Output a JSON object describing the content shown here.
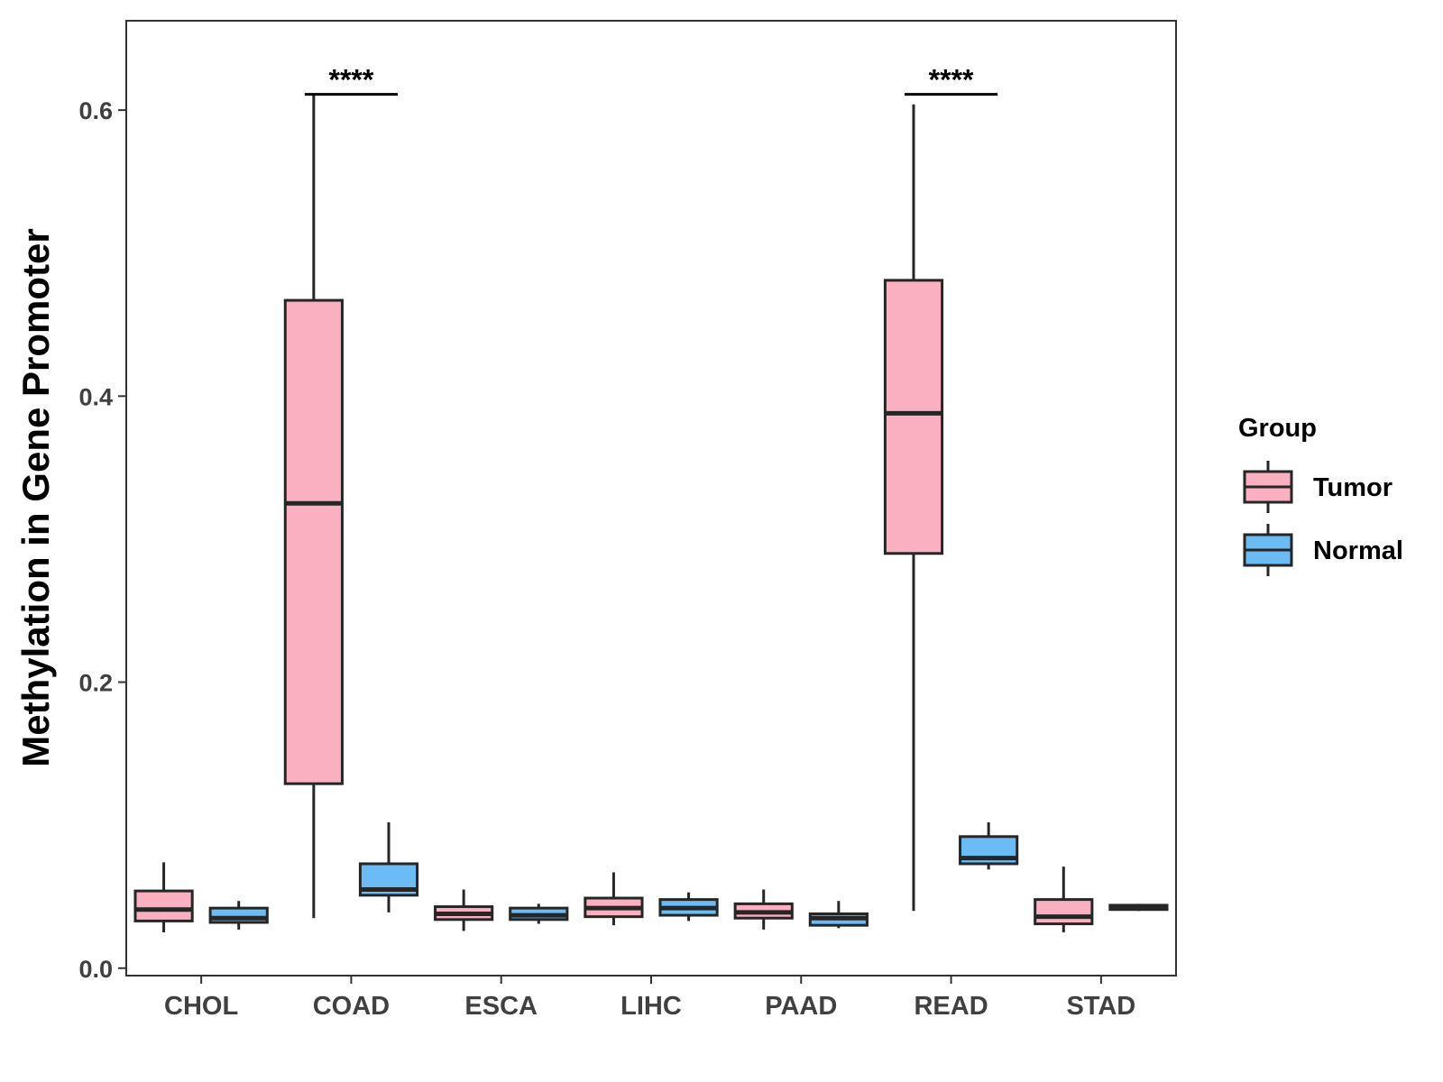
{
  "chart_data": {
    "type": "box",
    "title": "",
    "xlabel": "",
    "ylabel": "Methylation in Gene Promoter",
    "ylim": [
      -0.0052,
      0.6625
    ],
    "yticks": [
      0.0,
      0.2,
      0.4,
      0.6
    ],
    "ytick_labels": [
      "0.0",
      "0.2",
      "0.4",
      "0.6"
    ],
    "grid": false,
    "legend": {
      "title": "Group",
      "position": "right",
      "entries": [
        "Tumor",
        "Normal"
      ]
    },
    "colors": {
      "Tumor": "#FBB0C2",
      "Normal": "#6BBBF5",
      "outline": "#262626",
      "axis": "#333333"
    },
    "categories": [
      "CHOL",
      "COAD",
      "ESCA",
      "LIHC",
      "PAAD",
      "READ",
      "STAD"
    ],
    "series": [
      {
        "name": "Tumor",
        "boxes": [
          {
            "min": 0.025,
            "q1": 0.033,
            "median": 0.041,
            "q3": 0.054,
            "max": 0.074
          },
          {
            "min": 0.035,
            "q1": 0.129,
            "median": 0.325,
            "q3": 0.467,
            "max": 0.611
          },
          {
            "min": 0.026,
            "q1": 0.034,
            "median": 0.038,
            "q3": 0.043,
            "max": 0.055
          },
          {
            "min": 0.03,
            "q1": 0.036,
            "median": 0.042,
            "q3": 0.049,
            "max": 0.067
          },
          {
            "min": 0.027,
            "q1": 0.035,
            "median": 0.039,
            "q3": 0.045,
            "max": 0.055
          },
          {
            "min": 0.04,
            "q1": 0.29,
            "median": 0.388,
            "q3": 0.481,
            "max": 0.604
          },
          {
            "min": 0.025,
            "q1": 0.031,
            "median": 0.036,
            "q3": 0.048,
            "max": 0.071
          }
        ]
      },
      {
        "name": "Normal",
        "boxes": [
          {
            "min": 0.027,
            "q1": 0.032,
            "median": 0.035,
            "q3": 0.042,
            "max": 0.047
          },
          {
            "min": 0.039,
            "q1": 0.051,
            "median": 0.055,
            "q3": 0.073,
            "max": 0.102
          },
          {
            "min": 0.031,
            "q1": 0.034,
            "median": 0.037,
            "q3": 0.042,
            "max": 0.045
          },
          {
            "min": 0.033,
            "q1": 0.037,
            "median": 0.042,
            "q3": 0.048,
            "max": 0.053
          },
          {
            "min": 0.028,
            "q1": 0.03,
            "median": 0.035,
            "q3": 0.038,
            "max": 0.047
          },
          {
            "min": 0.069,
            "q1": 0.073,
            "median": 0.077,
            "q3": 0.092,
            "max": 0.102
          },
          {
            "min": 0.04,
            "q1": 0.041,
            "median": 0.043,
            "q3": 0.044,
            "max": 0.045
          }
        ]
      }
    ],
    "annotations": [
      {
        "category": "COAD",
        "text": "****",
        "y": 0.611
      },
      {
        "category": "READ",
        "text": "****",
        "y": 0.611
      }
    ]
  }
}
